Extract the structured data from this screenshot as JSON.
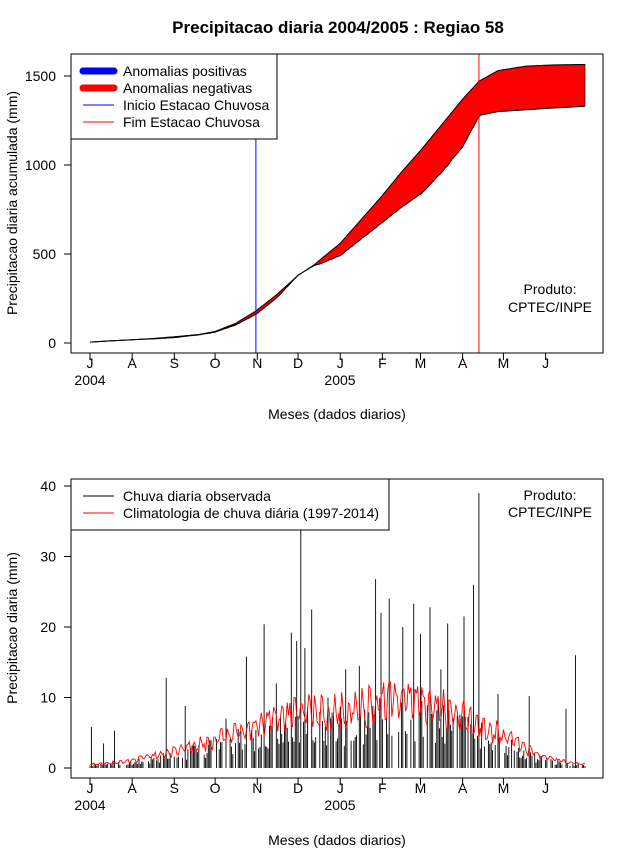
{
  "chart_data": [
    {
      "type": "area",
      "title": "Precipitacao diaria 2004/2005 : Regiao 58",
      "xlabel": "Meses (dados diarios)",
      "ylabel": "Precipitacao diaria acumulada (mm)",
      "ylim": [
        0,
        1600
      ],
      "y_ticks": [
        0,
        500,
        1000,
        1500
      ],
      "x_ticks": [
        "J",
        "A",
        "S",
        "O",
        "N",
        "D",
        "J",
        "F",
        "M",
        "A",
        "M",
        "J"
      ],
      "year_labels": [
        "2004",
        "2005"
      ],
      "legend": [
        {
          "label": "Anomalias positivas",
          "color": "#0000ff",
          "style": "thick"
        },
        {
          "label": "Anomalias negativas",
          "color": "#ff0000",
          "style": "thick"
        },
        {
          "label": "Inicio Estacao Chuvosa",
          "color": "#0000ff",
          "style": "thin"
        },
        {
          "label": "Fim Estacao Chuvosa",
          "color": "#ff0000",
          "style": "thin"
        }
      ],
      "annotation": [
        "Produto:",
        "CPTEC/INPE"
      ],
      "season_start_day": 122,
      "season_end_day": 286,
      "day_range": [
        0,
        365
      ],
      "observed_cumulative": {
        "days": [
          0,
          15,
          31,
          46,
          62,
          80,
          92,
          107,
          122,
          137,
          153,
          165,
          168,
          184,
          199,
          214,
          229,
          244,
          259,
          274,
          286,
          287,
          300,
          320,
          340,
          364
        ],
        "values": [
          5,
          12,
          18,
          23,
          30,
          45,
          60,
          100,
          160,
          250,
          380,
          435,
          440,
          490,
          580,
          670,
          760,
          840,
          960,
          1100,
          1270,
          1280,
          1300,
          1310,
          1320,
          1330
        ]
      },
      "climatology_cumulative": {
        "days": [
          0,
          15,
          31,
          46,
          62,
          80,
          92,
          107,
          122,
          137,
          153,
          165,
          168,
          184,
          199,
          214,
          229,
          244,
          259,
          274,
          286,
          287,
          300,
          320,
          340,
          364
        ],
        "values": [
          5,
          12,
          18,
          25,
          35,
          48,
          65,
          110,
          180,
          270,
          380,
          440,
          460,
          560,
          690,
          820,
          960,
          1090,
          1230,
          1370,
          1470,
          1475,
          1530,
          1555,
          1562,
          1565
        ]
      },
      "colors": {
        "positive": "#0000ff",
        "negative": "#ff0000",
        "line": "#000000"
      }
    },
    {
      "type": "line",
      "xlabel": "Meses (dados diarios)",
      "ylabel": "Precipitacao diaria (mm)",
      "ylim": [
        0,
        40
      ],
      "y_ticks": [
        0,
        10,
        20,
        30,
        40
      ],
      "x_ticks": [
        "J",
        "A",
        "S",
        "O",
        "N",
        "D",
        "J",
        "F",
        "M",
        "A",
        "M",
        "J"
      ],
      "year_labels": [
        "2004",
        "2005"
      ],
      "legend": [
        {
          "label": "Chuva diaria observada",
          "color": "#000000"
        },
        {
          "label": "Climatologia de chuva diária (1997-2014)",
          "color": "#ff0000"
        }
      ],
      "annotation": [
        "Produto:",
        "CPTEC/INPE"
      ],
      "observed_daily_peaks": [
        {
          "day": 1,
          "value": 5.8
        },
        {
          "day": 10,
          "value": 3.5
        },
        {
          "day": 18,
          "value": 5.3
        },
        {
          "day": 56,
          "value": 12.8
        },
        {
          "day": 70,
          "value": 8.8
        },
        {
          "day": 100,
          "value": 7.0
        },
        {
          "day": 115,
          "value": 15.8
        },
        {
          "day": 128,
          "value": 20.4
        },
        {
          "day": 137,
          "value": 12.0
        },
        {
          "day": 148,
          "value": 19.2
        },
        {
          "day": 152,
          "value": 18.0
        },
        {
          "day": 155,
          "value": 34.5
        },
        {
          "day": 158,
          "value": 17.0
        },
        {
          "day": 163,
          "value": 22.5
        },
        {
          "day": 175,
          "value": 10.0
        },
        {
          "day": 188,
          "value": 14.0
        },
        {
          "day": 198,
          "value": 14.5
        },
        {
          "day": 210,
          "value": 26.8
        },
        {
          "day": 214,
          "value": 22.0
        },
        {
          "day": 220,
          "value": 24.0
        },
        {
          "day": 230,
          "value": 20.0
        },
        {
          "day": 238,
          "value": 23.3
        },
        {
          "day": 243,
          "value": 19.0
        },
        {
          "day": 250,
          "value": 22.8
        },
        {
          "day": 258,
          "value": 14.0
        },
        {
          "day": 263,
          "value": 20.5
        },
        {
          "day": 275,
          "value": 21.5
        },
        {
          "day": 282,
          "value": 26.0
        },
        {
          "day": 286,
          "value": 39.0
        },
        {
          "day": 300,
          "value": 10.5
        },
        {
          "day": 323,
          "value": 10.2
        },
        {
          "day": 350,
          "value": 8.4
        },
        {
          "day": 357,
          "value": 16.0
        }
      ],
      "climatology_profile": {
        "days": [
          0,
          30,
          60,
          90,
          110,
          130,
          150,
          165,
          180,
          200,
          220,
          240,
          260,
          275,
          290,
          310,
          330,
          350,
          364
        ],
        "values": [
          0.5,
          1.0,
          2.2,
          3.8,
          5.2,
          6.3,
          7.5,
          8.0,
          7.8,
          8.6,
          9.3,
          8.8,
          8.3,
          7.5,
          6.0,
          3.8,
          1.8,
          0.8,
          0.5
        ]
      },
      "colors": {
        "observed": "#000000",
        "climatology": "#ff0000"
      }
    }
  ]
}
